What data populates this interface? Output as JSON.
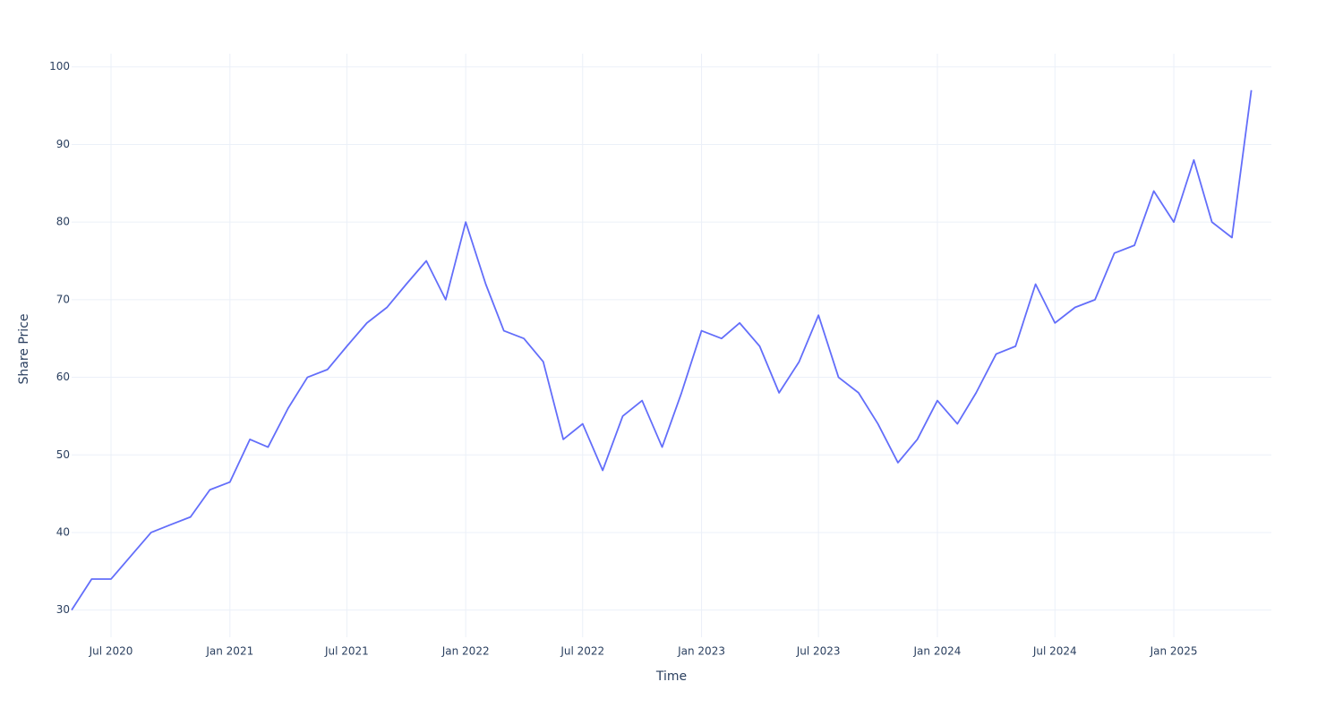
{
  "chart_data": {
    "type": "line",
    "x_label": "Time",
    "y_label": "Share Price",
    "x": [
      "2020-05",
      "2020-06",
      "2020-07",
      "2020-08",
      "2020-09",
      "2020-10",
      "2020-11",
      "2020-12",
      "2021-01",
      "2021-02",
      "2021-03",
      "2021-04",
      "2021-05",
      "2021-06",
      "2021-07",
      "2021-08",
      "2021-09",
      "2021-10",
      "2021-11",
      "2021-12",
      "2022-01",
      "2022-02",
      "2022-03",
      "2022-04",
      "2022-05",
      "2022-06",
      "2022-07",
      "2022-08",
      "2022-09",
      "2022-10",
      "2022-11",
      "2022-12",
      "2023-01",
      "2023-02",
      "2023-03",
      "2023-04",
      "2023-05",
      "2023-06",
      "2023-07",
      "2023-08",
      "2023-09",
      "2023-10",
      "2023-11",
      "2023-12",
      "2024-01",
      "2024-02",
      "2024-03",
      "2024-04",
      "2024-05",
      "2024-06",
      "2024-07",
      "2024-08",
      "2024-09",
      "2024-10",
      "2024-11",
      "2024-12",
      "2025-01",
      "2025-02",
      "2025-03",
      "2025-04",
      "2025-05"
    ],
    "series": [
      {
        "name": "Share Price",
        "color": "#636efa",
        "values": [
          30,
          34,
          34,
          37,
          40,
          41,
          42,
          45.5,
          46.5,
          52,
          51,
          56,
          60,
          61,
          64,
          67,
          69,
          72,
          75,
          70,
          80,
          72,
          66,
          65,
          62,
          52,
          54,
          48,
          55,
          57,
          51,
          58,
          66,
          65,
          67,
          64,
          58,
          62,
          68,
          60,
          58,
          54,
          49,
          52,
          57,
          54,
          58,
          63,
          64,
          72,
          67,
          69,
          70,
          76,
          77,
          84,
          80,
          88,
          80,
          78,
          97
        ]
      }
    ],
    "xlim": [
      "2020-05",
      "2025-06"
    ],
    "xticks": [
      {
        "value": "2020-07",
        "label": "Jul 2020"
      },
      {
        "value": "2021-01",
        "label": "Jan 2021"
      },
      {
        "value": "2021-07",
        "label": "Jul 2021"
      },
      {
        "value": "2022-01",
        "label": "Jan 2022"
      },
      {
        "value": "2022-07",
        "label": "Jul 2022"
      },
      {
        "value": "2023-01",
        "label": "Jan 2023"
      },
      {
        "value": "2023-07",
        "label": "Jul 2023"
      },
      {
        "value": "2024-01",
        "label": "Jan 2024"
      },
      {
        "value": "2024-07",
        "label": "Jul 2024"
      },
      {
        "value": "2025-01",
        "label": "Jan 2025"
      }
    ],
    "ylim": [
      26.5,
      101.7
    ],
    "yticks": [
      30,
      40,
      50,
      60,
      70,
      80,
      90,
      100
    ],
    "grid": true
  }
}
